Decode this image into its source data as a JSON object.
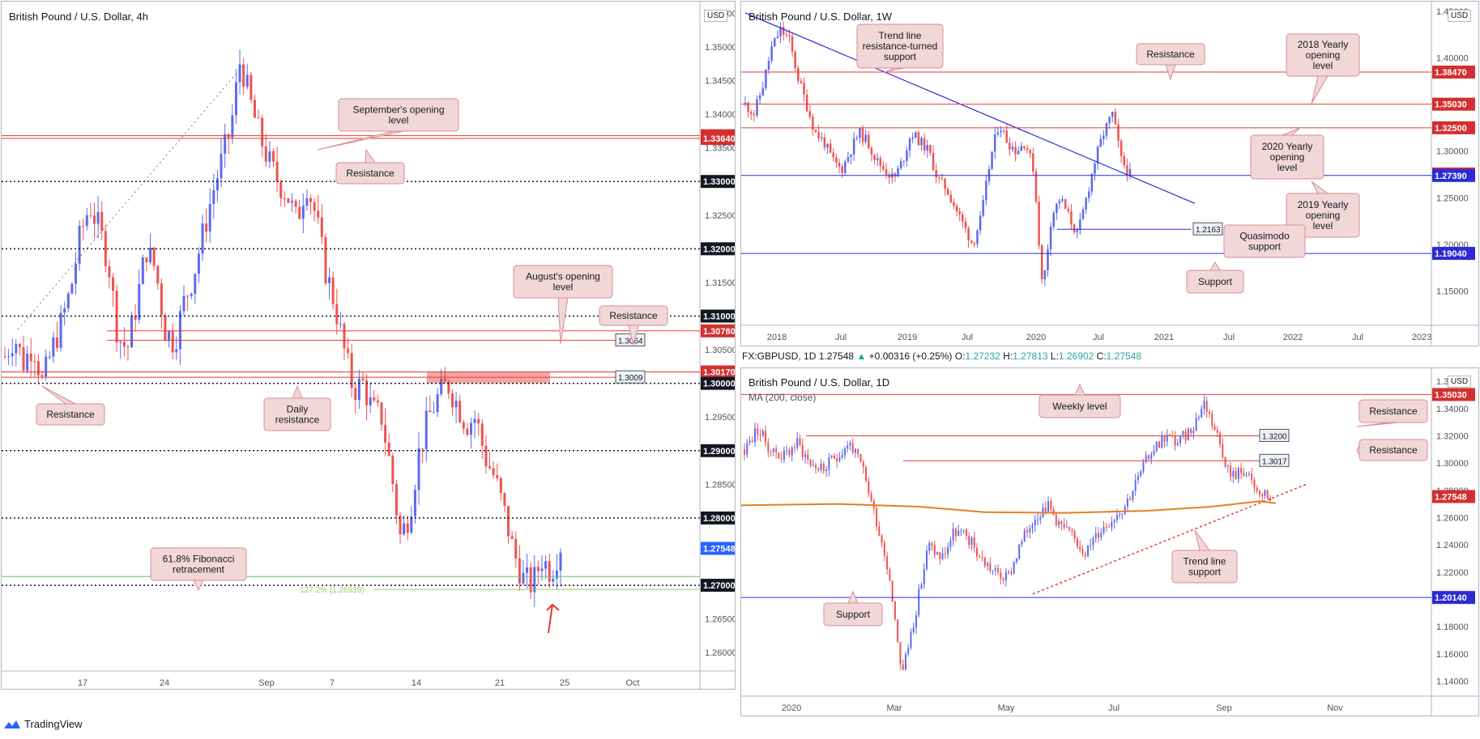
{
  "colors": {
    "up": "#5b6af0",
    "down": "#ef5350",
    "red_line": "#e53935",
    "blue_line": "#2b2bd6",
    "ma": "#e67e22",
    "callout_bg": "#f2d7d9",
    "callout_border": "#d98c93"
  },
  "panel4h": {
    "title": "British Pound / U.S. Dollar, 4h",
    "currency": "USD",
    "ylim": [
      1.2575,
      1.356
    ],
    "yticks": [
      "1.26000",
      "1.26500",
      "1.27000",
      "1.27500",
      "1.28000",
      "1.28500",
      "1.29000",
      "1.29500",
      "1.30000",
      "1.30500",
      "1.31000",
      "1.31500",
      "1.32000",
      "1.32500",
      "1.33000",
      "1.33500",
      "1.34000",
      "1.34500",
      "1.35000",
      "1.35500"
    ],
    "xticks": [
      "17",
      "24",
      "Sep",
      "7",
      "14",
      "21",
      "25",
      "Oct"
    ],
    "price_tags": [
      {
        "text": "1.33680",
        "value": 1.3368,
        "color": "#d32f2f"
      },
      {
        "text": "1.33640",
        "value": 1.3364,
        "color": "#d32f2f"
      },
      {
        "text": "1.33000",
        "value": 1.33,
        "color": "#131722"
      },
      {
        "text": "1.32000",
        "value": 1.32,
        "color": "#131722"
      },
      {
        "text": "1.31000",
        "value": 1.31,
        "color": "#131722"
      },
      {
        "text": "1.30780",
        "value": 1.3078,
        "color": "#d32f2f"
      },
      {
        "text": "1.30170",
        "value": 1.3017,
        "color": "#d32f2f"
      },
      {
        "text": "1.30000",
        "value": 1.3,
        "color": "#131722"
      },
      {
        "text": "1.29000",
        "value": 1.29,
        "color": "#131722"
      },
      {
        "text": "1.28000",
        "value": 1.28,
        "color": "#131722"
      },
      {
        "text": "1.27548",
        "value": 1.27548,
        "color": "#2962ff"
      },
      {
        "text": "1.27000",
        "value": 1.27,
        "color": "#131722"
      }
    ],
    "mini_labels": [
      {
        "text": "1.3064"
      },
      {
        "text": "1.3009"
      }
    ],
    "fib_label": "127.2% (1.26939)",
    "callouts": [
      {
        "text": "September's opening level"
      },
      {
        "text": "Resistance"
      },
      {
        "text": "August's opening level"
      },
      {
        "text": "Resistance"
      },
      {
        "text": "Resistance"
      },
      {
        "text": "Daily resistance"
      },
      {
        "text": "61.8% Fibonacci retracement"
      }
    ]
  },
  "panel1w": {
    "title": "British Pound / U.S. Dollar, 1W",
    "currency": "USD",
    "ylim": [
      1.115,
      1.455
    ],
    "yticks": [
      "1.15000",
      "1.20000",
      "1.25000",
      "1.30000",
      "1.35000",
      "1.40000",
      "1.45000"
    ],
    "xticks": [
      "2018",
      "Jul",
      "2019",
      "Jul",
      "2020",
      "Jul",
      "2021",
      "Jul",
      "2022",
      "Jul",
      "2023"
    ],
    "price_tags": [
      {
        "text": "1.38470",
        "value": 1.3847,
        "color": "#d32f2f"
      },
      {
        "text": "1.35030",
        "value": 1.3503,
        "color": "#d32f2f"
      },
      {
        "text": "1.32500",
        "value": 1.325,
        "color": "#d32f2f"
      },
      {
        "text": "1.27548",
        "value": 1.27548,
        "color": "#d32f2f"
      },
      {
        "text": "1.27390",
        "value": 1.2739,
        "color": "#2b2bd6"
      },
      {
        "text": "1.19040",
        "value": 1.1904,
        "color": "#2b2bd6"
      }
    ],
    "mini_labels": [
      {
        "text": "1.2163"
      }
    ],
    "callouts": [
      {
        "text": "Trend line resistance-turned support"
      },
      {
        "text": "Resistance"
      },
      {
        "text": "2018 Yearly opening level"
      },
      {
        "text": "2020 Yearly opening level"
      },
      {
        "text": "2019 Yearly opening level"
      },
      {
        "text": "Quasimodo support"
      },
      {
        "text": "Support"
      }
    ]
  },
  "panel1d": {
    "header": {
      "symbol": "FX:GBPUSD, 1D",
      "price": "1.27548",
      "change": "+0.00316 (+0.25%)",
      "o_label": "O:",
      "o": "1.27232",
      "h_label": "H:",
      "h": "1.27813",
      "l_label": "L:",
      "l": "1.26902",
      "c_label": "C:",
      "c": "1.27548"
    },
    "title": "British Pound / U.S. Dollar, 1D",
    "currency": "USD",
    "ma_label": "MA (200, close)",
    "ylim": [
      1.132,
      1.366
    ],
    "yticks": [
      "1.14000",
      "1.16000",
      "1.18000",
      "1.20000",
      "1.22000",
      "1.24000",
      "1.26000",
      "1.28000",
      "1.30000",
      "1.32000",
      "1.34000",
      "1.36000"
    ],
    "xticks": [
      "2020",
      "Mar",
      "May",
      "Jul",
      "Sep",
      "Nov"
    ],
    "price_tags": [
      {
        "text": "1.35030",
        "value": 1.3503,
        "color": "#d32f2f"
      },
      {
        "text": "1.27548",
        "value": 1.27548,
        "color": "#d32f2f"
      },
      {
        "text": "1.20140",
        "value": 1.2014,
        "color": "#2b2bd6"
      }
    ],
    "mini_labels": [
      {
        "text": "1.3200"
      },
      {
        "text": "1.3017"
      }
    ],
    "callouts": [
      {
        "text": "Weekly level"
      },
      {
        "text": "Resistance"
      },
      {
        "text": "Resistance"
      },
      {
        "text": "Trend line support"
      },
      {
        "text": "Support"
      }
    ]
  },
  "footer": {
    "brand": "TradingView"
  },
  "chart_data": [
    {
      "type": "candlestick",
      "title": "British Pound / U.S. Dollar, 4h",
      "ylim": [
        1.2575,
        1.356
      ],
      "levels": [
        1.3368,
        1.3364,
        1.33,
        1.32,
        1.31,
        1.3078,
        1.3064,
        1.3017,
        1.3009,
        1.3,
        1.29,
        1.28,
        1.27548,
        1.27,
        1.26939
      ],
      "path": [
        1.304,
        1.307,
        1.303,
        1.306,
        1.3,
        1.305,
        1.309,
        1.314,
        1.322,
        1.3265,
        1.323,
        1.318,
        1.307,
        1.305,
        1.312,
        1.32,
        1.317,
        1.308,
        1.306,
        1.312,
        1.316,
        1.322,
        1.328,
        1.333,
        1.338,
        1.3482,
        1.342,
        1.337,
        1.333,
        1.33,
        1.328,
        1.324,
        1.33,
        1.325,
        1.317,
        1.312,
        1.305,
        1.299,
        1.3,
        1.296,
        1.295,
        1.287,
        1.277,
        1.281,
        1.29,
        1.295,
        1.298,
        1.3,
        1.297,
        1.294,
        1.295,
        1.289,
        1.286,
        1.281,
        1.275,
        1.271,
        1.27,
        1.274,
        1.272,
        1.276
      ]
    },
    {
      "type": "candlestick",
      "title": "British Pound / U.S. Dollar, 1W",
      "ylim": [
        1.115,
        1.455
      ],
      "levels": [
        1.3847,
        1.3503,
        1.325,
        1.27548,
        1.2739,
        1.2163,
        1.1904
      ],
      "path": [
        1.35,
        1.34,
        1.37,
        1.41,
        1.43,
        1.42,
        1.38,
        1.35,
        1.32,
        1.31,
        1.29,
        1.28,
        1.3,
        1.32,
        1.31,
        1.29,
        1.28,
        1.27,
        1.29,
        1.32,
        1.31,
        1.3,
        1.27,
        1.26,
        1.24,
        1.22,
        1.2,
        1.23,
        1.29,
        1.33,
        1.31,
        1.3,
        1.31,
        1.28,
        1.15,
        1.23,
        1.25,
        1.23,
        1.21,
        1.25,
        1.29,
        1.32,
        1.34,
        1.29,
        1.275
      ]
    },
    {
      "type": "candlestick",
      "title": "British Pound / U.S. Dollar, 1D",
      "ylim": [
        1.132,
        1.366
      ],
      "levels": [
        1.3503,
        1.32,
        1.3017,
        1.27548,
        1.2014
      ],
      "path": [
        1.31,
        1.325,
        1.31,
        1.305,
        1.315,
        1.3,
        1.295,
        1.305,
        1.315,
        1.295,
        1.26,
        1.22,
        1.145,
        1.19,
        1.24,
        1.23,
        1.25,
        1.245,
        1.23,
        1.22,
        1.215,
        1.24,
        1.26,
        1.27,
        1.255,
        1.245,
        1.235,
        1.25,
        1.26,
        1.27,
        1.29,
        1.31,
        1.32,
        1.315,
        1.325,
        1.345,
        1.32,
        1.29,
        1.295,
        1.278,
        1.2755
      ]
    }
  ]
}
